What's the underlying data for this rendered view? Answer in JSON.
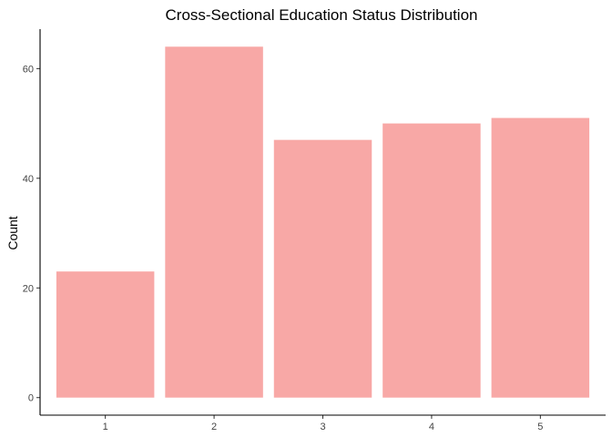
{
  "chart_data": {
    "type": "bar",
    "title": "Cross-Sectional Education Status Distribution",
    "xlabel": "",
    "ylabel": "Count",
    "categories": [
      "1",
      "2",
      "3",
      "4",
      "5"
    ],
    "values": [
      23,
      64,
      47,
      50,
      51
    ],
    "yticks": [
      0,
      20,
      40,
      60
    ],
    "ylim": [
      -3.2,
      67.2
    ],
    "bar_color": "#F8A8A6",
    "grid": false,
    "legend": "none"
  }
}
